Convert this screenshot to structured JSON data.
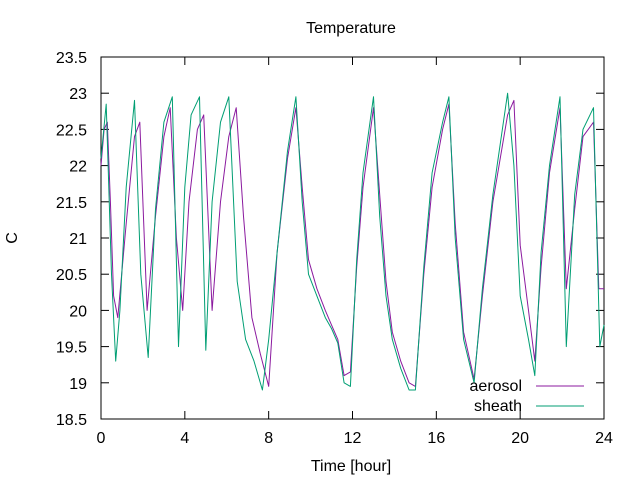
{
  "chart_data": {
    "type": "line",
    "title": "Temperature",
    "xlabel": "Time [hour]",
    "ylabel": "C",
    "xlim": [
      0,
      24
    ],
    "ylim": [
      18.5,
      23.5
    ],
    "xticks": [
      0,
      4,
      8,
      12,
      16,
      20,
      24
    ],
    "xtick_labels": [
      "0",
      "4",
      "8",
      "12",
      "16",
      "20",
      "24"
    ],
    "yticks": [
      18.5,
      19,
      19.5,
      20,
      20.5,
      21,
      21.5,
      22,
      22.5,
      23,
      23.5
    ],
    "ytick_labels": [
      "18.5",
      "19",
      "19.5",
      "20",
      "20.5",
      "21",
      "21.5",
      "22",
      "22.5",
      "23",
      "23.5"
    ],
    "grid": false,
    "legend_position": "bottom-right",
    "series": [
      {
        "name": "aerosol",
        "color": "#8b1a9f",
        "x": [
          0,
          0.15,
          0.3,
          0.45,
          0.6,
          0.8,
          1.2,
          1.6,
          1.85,
          2.2,
          2.6,
          3.0,
          3.3,
          3.6,
          3.9,
          4.2,
          4.6,
          4.9,
          5.3,
          5.7,
          6.1,
          6.45,
          6.8,
          7.2,
          7.6,
          8.0,
          8.4,
          8.9,
          9.3,
          9.6,
          9.9,
          10.3,
          10.7,
          11.0,
          11.3,
          11.6,
          11.9,
          12.2,
          12.5,
          13.0,
          13.3,
          13.6,
          13.9,
          14.3,
          14.7,
          15.0,
          15.4,
          15.8,
          16.3,
          16.6,
          16.9,
          17.3,
          17.8,
          18.2,
          18.7,
          19.4,
          19.7,
          20.0,
          20.4,
          20.7,
          21.0,
          21.4,
          21.9,
          22.2,
          22.6,
          23.0,
          23.5,
          23.75,
          24.0
        ],
        "y": [
          22.0,
          22.5,
          22.6,
          21.5,
          20.2,
          19.9,
          21.2,
          22.4,
          22.6,
          20.0,
          21.3,
          22.4,
          22.8,
          21.0,
          20.0,
          21.5,
          22.5,
          22.7,
          20.0,
          21.5,
          22.4,
          22.8,
          21.3,
          19.9,
          19.4,
          18.95,
          20.8,
          22.1,
          22.8,
          21.7,
          20.7,
          20.3,
          20.0,
          19.8,
          19.6,
          19.1,
          19.15,
          20.6,
          21.7,
          22.8,
          21.6,
          20.4,
          19.7,
          19.3,
          19.0,
          18.95,
          20.5,
          21.7,
          22.5,
          22.85,
          21.2,
          19.7,
          19.05,
          20.2,
          21.5,
          22.7,
          22.9,
          20.9,
          20.0,
          19.3,
          20.6,
          21.9,
          22.8,
          20.3,
          21.4,
          22.4,
          22.6,
          20.3,
          20.3
        ]
      },
      {
        "name": "sheath",
        "color": "#009e73",
        "x": [
          0,
          0.25,
          0.5,
          0.7,
          0.9,
          1.2,
          1.6,
          1.9,
          2.25,
          2.6,
          3.0,
          3.4,
          3.7,
          4.0,
          4.3,
          4.7,
          5.0,
          5.3,
          5.7,
          6.1,
          6.5,
          6.9,
          7.3,
          7.7,
          8.0,
          8.4,
          8.9,
          9.3,
          9.6,
          9.9,
          10.3,
          10.7,
          11.0,
          11.3,
          11.6,
          11.9,
          12.2,
          12.5,
          13.0,
          13.3,
          13.6,
          13.9,
          14.3,
          14.7,
          15.0,
          15.4,
          15.8,
          16.3,
          16.6,
          16.9,
          17.3,
          17.8,
          18.2,
          18.7,
          19.4,
          19.7,
          20.0,
          20.4,
          20.7,
          21.0,
          21.4,
          21.9,
          22.2,
          22.6,
          23.0,
          23.5,
          23.8,
          24.0
        ],
        "y": [
          22.1,
          22.85,
          20.5,
          19.3,
          20.0,
          21.7,
          22.9,
          20.5,
          19.35,
          21.4,
          22.6,
          22.95,
          19.5,
          21.7,
          22.7,
          22.95,
          19.45,
          21.5,
          22.6,
          22.95,
          20.4,
          19.6,
          19.3,
          18.9,
          19.6,
          20.8,
          22.2,
          22.95,
          21.5,
          20.5,
          20.2,
          19.9,
          19.75,
          19.55,
          19.0,
          18.95,
          20.7,
          21.9,
          22.95,
          21.3,
          20.2,
          19.6,
          19.2,
          18.9,
          18.9,
          20.6,
          21.9,
          22.6,
          22.95,
          21.0,
          19.6,
          19.0,
          20.3,
          21.6,
          23.0,
          22.0,
          20.2,
          19.6,
          19.1,
          20.8,
          22.0,
          22.95,
          19.5,
          21.6,
          22.5,
          22.8,
          19.5,
          19.8
        ]
      }
    ]
  }
}
